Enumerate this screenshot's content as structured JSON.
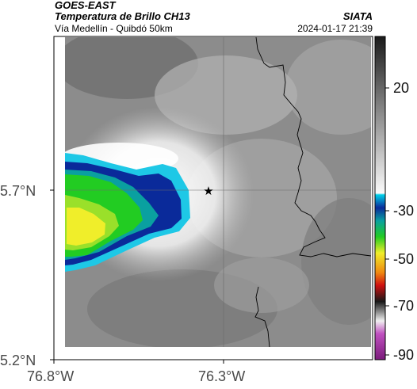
{
  "header": {
    "satellite": "GOES-EAST",
    "product": "Temperatura de Brillo CH13",
    "route": "Vía Medellín - Quibdó 50km",
    "organization": "SIATA",
    "datetime": "2024-01-17 21:39"
  },
  "axes": {
    "x_ticks": [
      "76.8°W",
      "76.3°W"
    ],
    "y_ticks": [
      "5.7°N",
      "5.2°N"
    ]
  },
  "colorbar": {
    "ticks": [
      "20",
      "-30",
      "-50",
      "-70",
      "-90"
    ]
  },
  "map": {
    "marker_icon": "star-icon",
    "colors": {
      "cold_cyan": "#1ec8e6",
      "cold_blue": "#0a2a9a",
      "cold_green": "#22cc22",
      "cold_yellow": "#f0ee2a",
      "warm_gray": "#8a8a8a"
    }
  }
}
